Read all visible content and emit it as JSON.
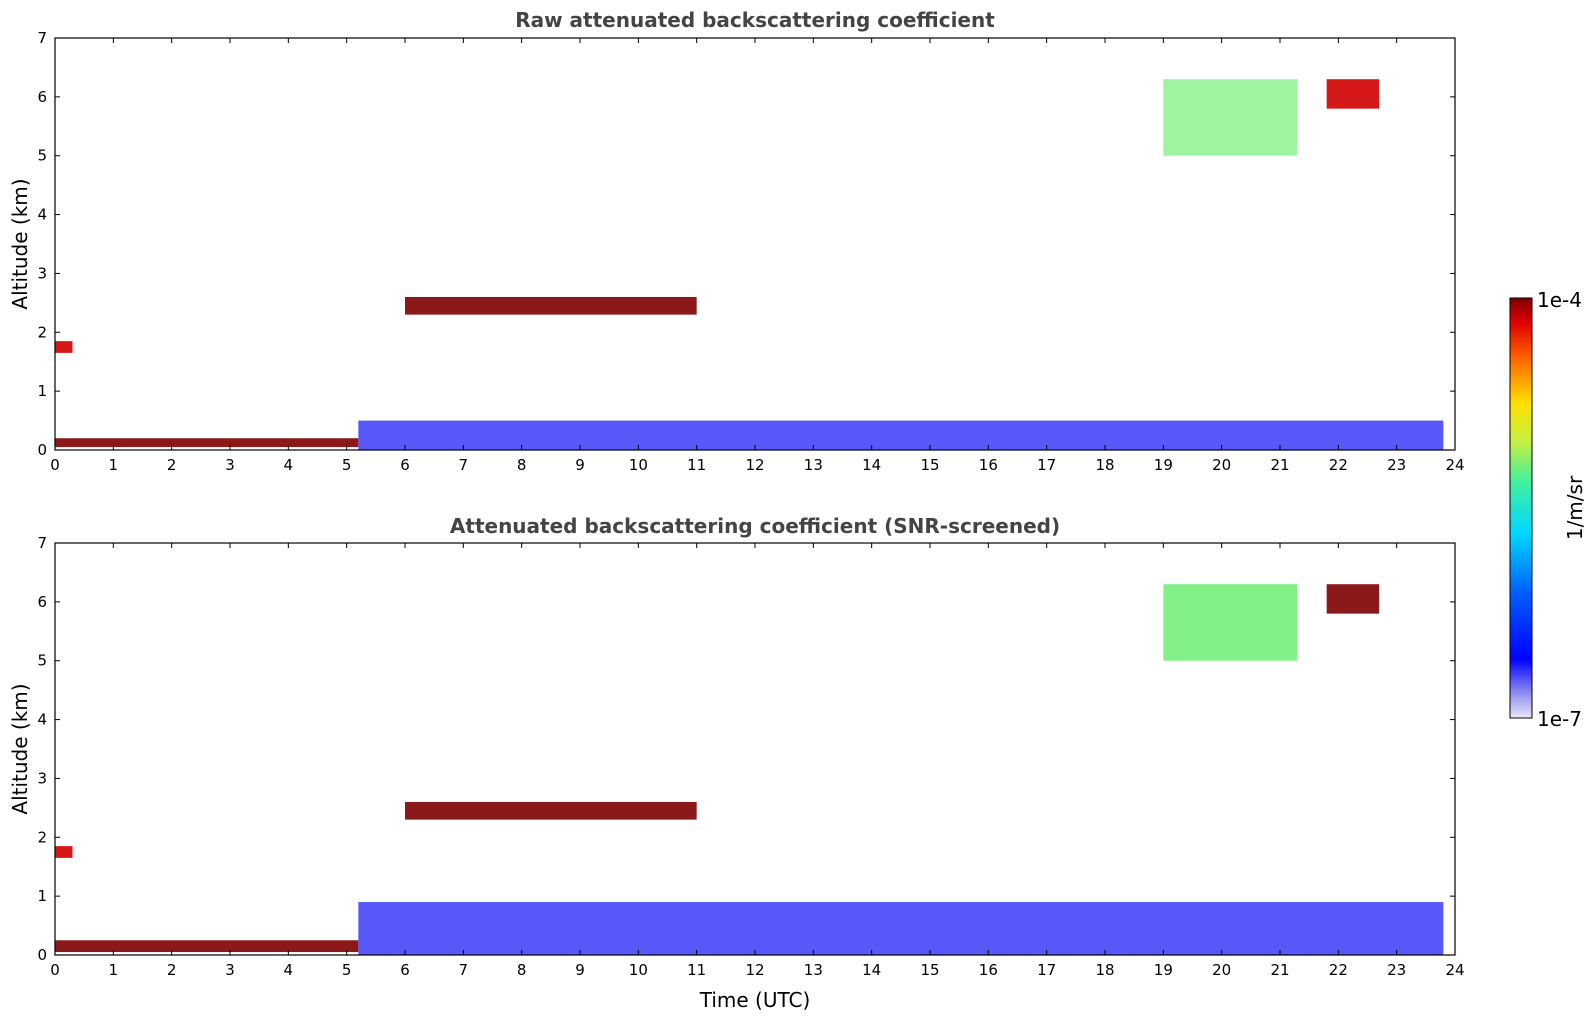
{
  "chart_data": [
    {
      "type": "heatmap",
      "title": "Raw attenuated backscattering coefficient",
      "xlabel": "",
      "ylabel": "Altitude (km)",
      "xlim": [
        0,
        24
      ],
      "ylim": [
        0,
        7
      ],
      "xticks": [
        "0",
        "1",
        "2",
        "3",
        "4",
        "5",
        "6",
        "7",
        "8",
        "9",
        "10",
        "11",
        "12",
        "13",
        "14",
        "15",
        "16",
        "17",
        "18",
        "19",
        "20",
        "21",
        "22",
        "23",
        "24"
      ],
      "yticks": [
        "0",
        "1",
        "2",
        "3",
        "4",
        "5",
        "6",
        "7"
      ],
      "features": [
        {
          "label": "surface_layer",
          "x": [
            0,
            5.2
          ],
          "y": [
            0.05,
            0.2
          ],
          "level": 1.0
        },
        {
          "label": "boundary_layer",
          "x": [
            5.2,
            23.8
          ],
          "y": [
            0,
            0.5
          ],
          "level": 0.1
        },
        {
          "label": "layer_cloud",
          "x": [
            6.0,
            11.0
          ],
          "y": [
            2.3,
            2.6
          ],
          "level": 1.0
        },
        {
          "label": "low_cloud",
          "x": [
            0,
            0.3
          ],
          "y": [
            1.65,
            1.85
          ],
          "level": 0.95
        },
        {
          "label": "high_cloud",
          "x": [
            21.8,
            22.7
          ],
          "y": [
            5.8,
            6.3
          ],
          "level": 0.95
        },
        {
          "label": "cirrus",
          "x": [
            19.0,
            21.3
          ],
          "y": [
            5.0,
            6.3
          ],
          "level": 0.6
        }
      ]
    },
    {
      "type": "heatmap",
      "title": "Attenuated backscattering coefficient (SNR-screened)",
      "xlabel": "Time (UTC)",
      "ylabel": "Altitude (km)",
      "xlim": [
        0,
        24
      ],
      "ylim": [
        0,
        7
      ],
      "xticks": [
        "0",
        "1",
        "2",
        "3",
        "4",
        "5",
        "6",
        "7",
        "8",
        "9",
        "10",
        "11",
        "12",
        "13",
        "14",
        "15",
        "16",
        "17",
        "18",
        "19",
        "20",
        "21",
        "22",
        "23",
        "24"
      ],
      "yticks": [
        "0",
        "1",
        "2",
        "3",
        "4",
        "5",
        "6",
        "7"
      ],
      "features": [
        {
          "label": "surface_layer",
          "x": [
            0,
            5.2
          ],
          "y": [
            0.05,
            0.25
          ],
          "level": 1.0
        },
        {
          "label": "boundary_layer",
          "x": [
            5.2,
            23.8
          ],
          "y": [
            0,
            0.9
          ],
          "level": 0.1
        },
        {
          "label": "layer_cloud",
          "x": [
            6.0,
            11.0
          ],
          "y": [
            2.3,
            2.6
          ],
          "level": 1.0
        },
        {
          "label": "low_cloud",
          "x": [
            0,
            0.3
          ],
          "y": [
            1.65,
            1.85
          ],
          "level": 0.95
        },
        {
          "label": "high_cloud",
          "x": [
            21.8,
            22.7
          ],
          "y": [
            5.8,
            6.3
          ],
          "level": 1.0
        },
        {
          "label": "cirrus",
          "x": [
            19.0,
            21.3
          ],
          "y": [
            5.0,
            6.3
          ],
          "level": 0.6
        }
      ]
    }
  ],
  "colorbar": {
    "label": "1/m/sr",
    "max_label": "1e-4",
    "min_label": "1e-7",
    "scale": "log",
    "colormap": "jet",
    "low_color": "#e8e8f8",
    "high_color": "#800000"
  }
}
